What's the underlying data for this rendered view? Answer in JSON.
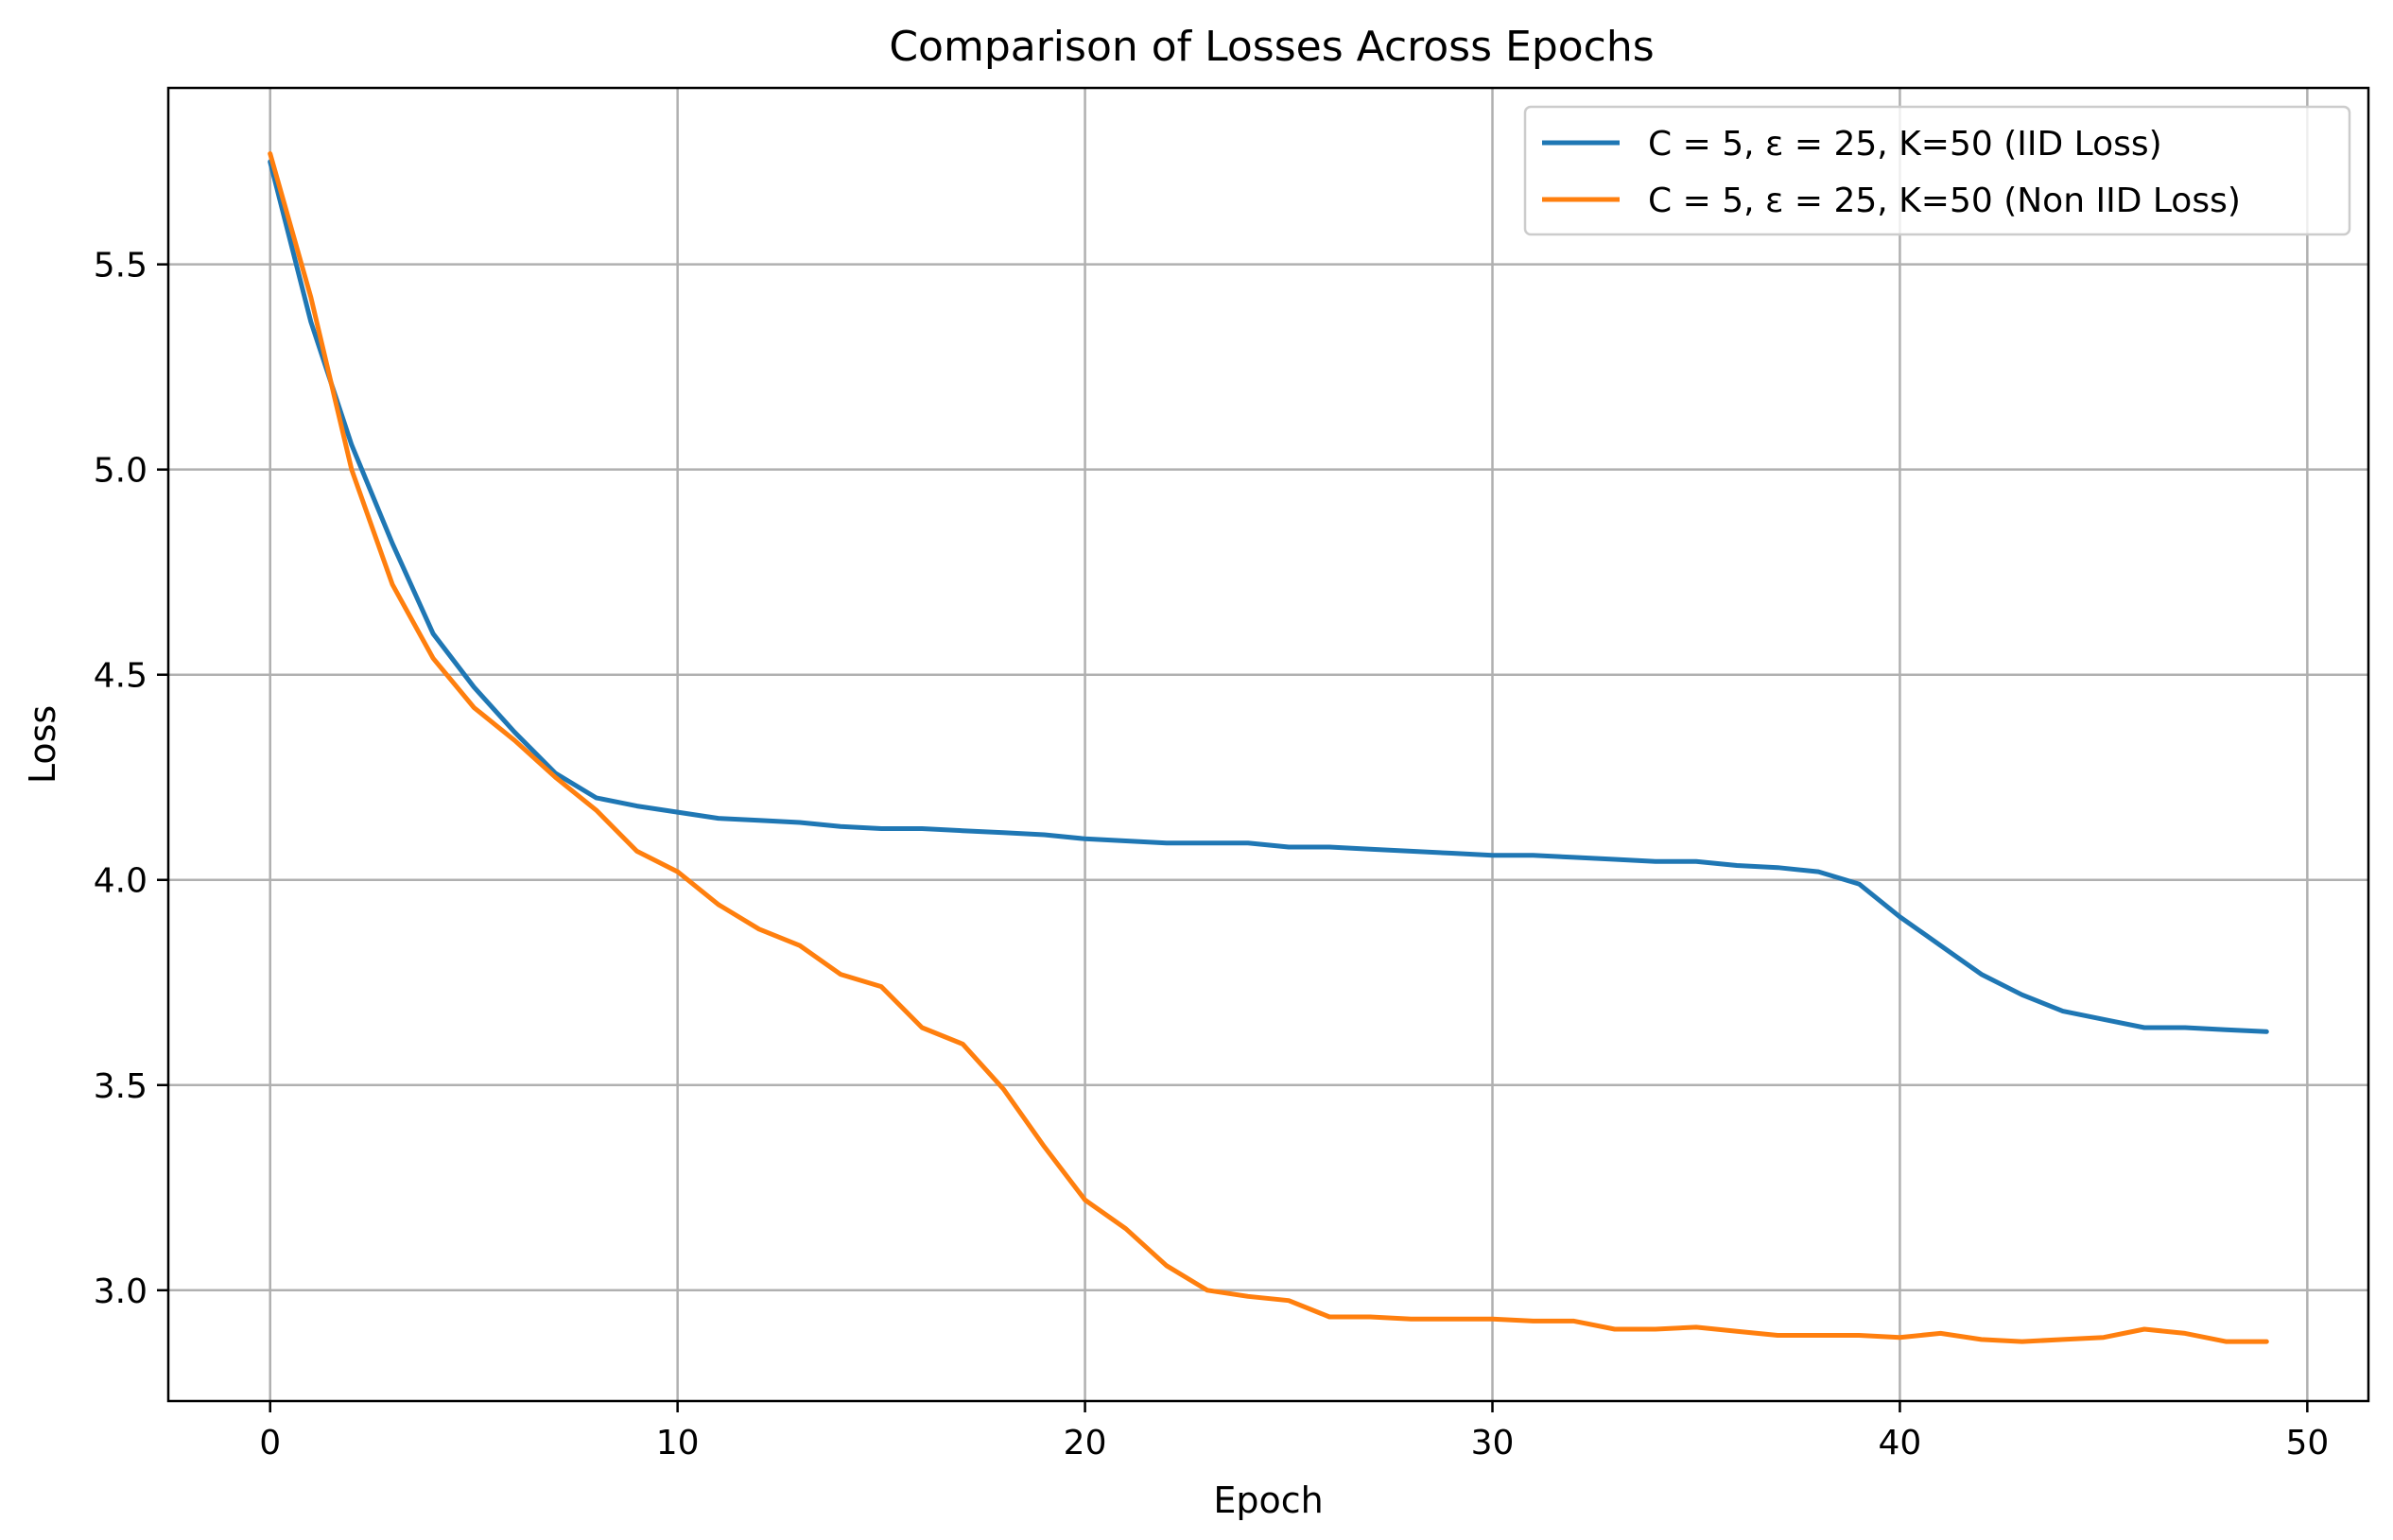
{
  "chart_data": {
    "type": "line",
    "title": "Comparison of Losses Across Epochs",
    "xlabel": "Epoch",
    "ylabel": "Loss",
    "xlim": [
      -2.5,
      51.5
    ],
    "ylim": [
      2.73,
      5.93
    ],
    "xticks": [
      0,
      10,
      20,
      30,
      40,
      50
    ],
    "xtick_labels": [
      "0",
      "10",
      "20",
      "30",
      "40",
      "50"
    ],
    "yticks": [
      3.0,
      3.5,
      4.0,
      4.5,
      5.0,
      5.5
    ],
    "ytick_labels": [
      "3.0",
      "3.5",
      "4.0",
      "4.5",
      "5.0",
      "5.5"
    ],
    "grid": true,
    "legend_position": "top-right",
    "x": [
      0,
      1,
      2,
      3,
      4,
      5,
      6,
      7,
      8,
      9,
      10,
      11,
      12,
      13,
      14,
      15,
      16,
      17,
      18,
      19,
      20,
      21,
      22,
      23,
      24,
      25,
      26,
      27,
      28,
      29,
      30,
      31,
      32,
      33,
      34,
      35,
      36,
      37,
      38,
      39,
      40,
      41,
      42,
      43,
      44,
      45,
      46,
      47,
      48,
      49
    ],
    "series": [
      {
        "name": "C = 5, ε = 25, K=50 (IID Loss)",
        "color": "#1f77b4",
        "values": [
          5.75,
          5.36,
          5.06,
          4.82,
          4.6,
          4.47,
          4.36,
          4.26,
          4.2,
          4.18,
          4.165,
          4.15,
          4.145,
          4.14,
          4.13,
          4.125,
          4.125,
          4.12,
          4.115,
          4.11,
          4.1,
          4.095,
          4.09,
          4.09,
          4.09,
          4.08,
          4.08,
          4.075,
          4.07,
          4.065,
          4.06,
          4.06,
          4.055,
          4.05,
          4.045,
          4.045,
          4.035,
          4.03,
          4.02,
          3.99,
          3.91,
          3.84,
          3.77,
          3.72,
          3.68,
          3.66,
          3.64,
          3.64,
          3.635,
          3.63
        ]
      },
      {
        "name": "C = 5, ε = 25, K=50 (Non IID Loss)",
        "color": "#ff7f0e",
        "values": [
          5.77,
          5.42,
          5.0,
          4.72,
          4.54,
          4.42,
          4.34,
          4.25,
          4.17,
          4.07,
          4.02,
          3.94,
          3.88,
          3.84,
          3.77,
          3.74,
          3.64,
          3.6,
          3.49,
          3.35,
          3.22,
          3.15,
          3.06,
          3.0,
          2.985,
          2.975,
          2.935,
          2.935,
          2.93,
          2.93,
          2.93,
          2.925,
          2.925,
          2.905,
          2.905,
          2.91,
          2.9,
          2.89,
          2.89,
          2.89,
          2.885,
          2.895,
          2.88,
          2.875,
          2.88,
          2.885,
          2.905,
          2.895,
          2.875,
          2.875
        ]
      }
    ]
  }
}
